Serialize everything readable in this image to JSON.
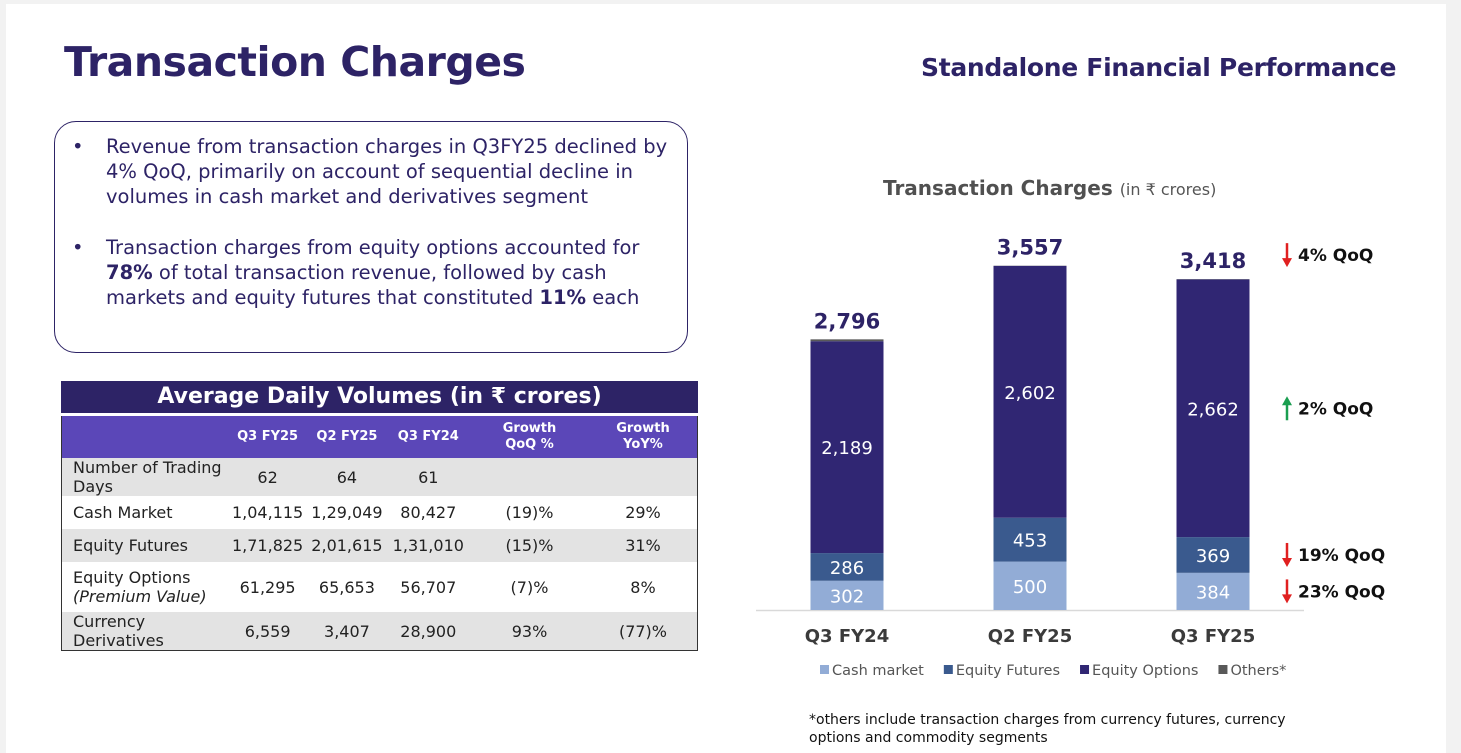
{
  "header": {
    "title": "Transaction Charges",
    "section": "Standalone Financial Performance"
  },
  "bullets": [
    {
      "dot": "•",
      "text_parts": [
        "Revenue from transaction charges in Q3FY25 declined by 4% QoQ, primarily on account of sequential decline in volumes in cash market and derivatives segment"
      ]
    },
    {
      "dot": "•",
      "p1": "Transaction charges from equity options accounted for ",
      "b1": "78%",
      "p2": " of total transaction revenue, followed by cash markets and equity futures that constituted ",
      "b2": "11%",
      "p3": " each"
    }
  ],
  "adv_table": {
    "title": "Average Daily Volumes (in ₹ crores)",
    "columns": [
      "",
      "Q3 FY25",
      "Q2 FY25",
      "Q3 FY24",
      "Growth QoQ %",
      "Growth YoY%"
    ],
    "rows": [
      {
        "label": "Number of Trading Days",
        "sub": "",
        "values": [
          "62",
          "64",
          "61",
          "",
          ""
        ]
      },
      {
        "label": "Cash Market",
        "sub": "",
        "values": [
          "1,04,115",
          "1,29,049",
          "80,427",
          "(19)%",
          "29%"
        ]
      },
      {
        "label": "Equity Futures",
        "sub": "",
        "values": [
          "1,71,825",
          "2,01,615",
          "1,31,010",
          "(15)%",
          "31%"
        ]
      },
      {
        "label": "Equity Options",
        "sub": "(Premium Value)",
        "values": [
          "61,295",
          "65,653",
          "56,707",
          "(7)%",
          "8%"
        ]
      },
      {
        "label": "Currency Derivatives",
        "sub": "",
        "values": [
          "6,559",
          "3,407",
          "28,900",
          "93%",
          "(77)%"
        ]
      }
    ]
  },
  "chart": {
    "title": "Transaction Charges",
    "unit": "(in ₹ crores)",
    "footnote": "*others include transaction charges from currency futures, currency options and commodity segments"
  },
  "chart_data": {
    "type": "bar",
    "stacked": true,
    "title": "Transaction Charges",
    "subtitle": "(in ₹ crores)",
    "categories": [
      "Q3 FY24",
      "Q2 FY25",
      "Q3 FY25"
    ],
    "series": [
      {
        "name": "Cash market",
        "values": [
          302,
          500,
          384
        ],
        "color": "#92acd6",
        "label_color": "#ffffff"
      },
      {
        "name": "Equity Futures",
        "values": [
          286,
          453,
          369
        ],
        "color": "#3a5a8e",
        "label_color": "#ffffff"
      },
      {
        "name": "Equity Options",
        "values": [
          2189,
          2602,
          2662
        ],
        "color": "#302673",
        "label_color": "#ffffff"
      },
      {
        "name": "Others*",
        "values": [
          19,
          2,
          3
        ],
        "color": "#595959",
        "label_color": ""
      }
    ],
    "totals": [
      2796,
      3557,
      3418
    ],
    "total_labels": [
      "2,796",
      "3,557",
      "3,418"
    ],
    "segment_labels": [
      [
        "302",
        "500",
        "384"
      ],
      [
        "286",
        "453",
        "369"
      ],
      [
        "2,189",
        "2,602",
        "2,662"
      ]
    ],
    "qoq_annotations": [
      {
        "target": "Total",
        "text": "4% QoQ",
        "direction": "down",
        "color": "#e02020"
      },
      {
        "target": "Equity Options",
        "text": "2% QoQ",
        "direction": "up",
        "color": "#1a9e50"
      },
      {
        "target": "Equity Futures",
        "text": "19% QoQ",
        "direction": "down",
        "color": "#e02020"
      },
      {
        "target": "Cash market",
        "text": "23% QoQ",
        "direction": "down",
        "color": "#e02020"
      }
    ],
    "ylim": [
      0,
      3600
    ],
    "grid": false,
    "legend_position": "bottom"
  }
}
